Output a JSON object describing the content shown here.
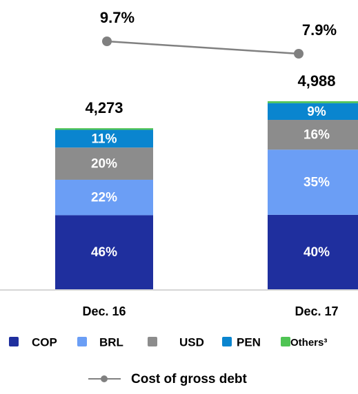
{
  "chart_data": {
    "type": "bar",
    "categories": [
      "Dec. 16",
      "Dec. 17"
    ],
    "totals": [
      4273,
      4988
    ],
    "total_labels": [
      "4,273",
      "4,988"
    ],
    "series": [
      {
        "name": "COP",
        "color": "#1f2f9e",
        "values": [
          46,
          40
        ],
        "value_labels": [
          "46%",
          "40%"
        ]
      },
      {
        "name": "BRL",
        "color": "#6b9ef5",
        "values": [
          22,
          35
        ],
        "value_labels": [
          "22%",
          "35%"
        ]
      },
      {
        "name": "USD",
        "color": "#8c8c8c",
        "values": [
          20,
          16
        ],
        "value_labels": [
          "20%",
          "16%"
        ]
      },
      {
        "name": "PEN",
        "color": "#0a85cf",
        "values": [
          11,
          9
        ],
        "value_labels": [
          "11%",
          "9%"
        ]
      },
      {
        "name": "Others³",
        "color": "#4fc454",
        "values": [
          1,
          1
        ]
      }
    ],
    "line": {
      "type": "line",
      "name": "Cost of gross debt",
      "color": "#808080",
      "values": [
        9.7,
        7.9
      ],
      "value_labels": [
        "9.7%",
        "7.9%"
      ]
    }
  }
}
